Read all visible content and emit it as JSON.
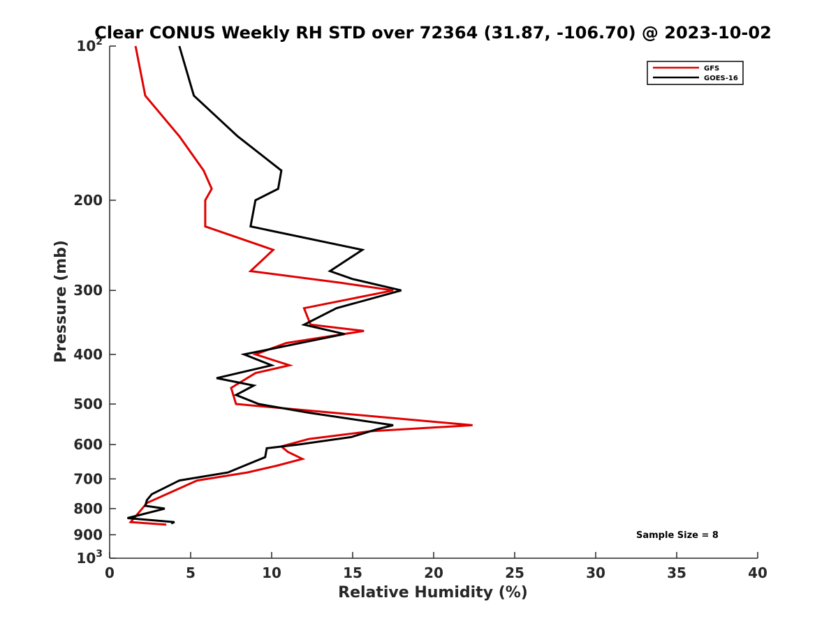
{
  "chart_data": {
    "type": "line",
    "title": "Clear CONUS Weekly RH STD over 72364 (31.87, -106.70) @ 2023-10-02",
    "xlabel": "Relative Humidity (%)",
    "ylabel": "Pressure (mb)",
    "xlim": [
      0,
      40
    ],
    "ylim": [
      100,
      1000
    ],
    "y_scale": "log",
    "y_reversed": true,
    "xticks": [
      0,
      5,
      10,
      15,
      20,
      25,
      30,
      35,
      40
    ],
    "xtick_labels": [
      "0",
      "5",
      "10",
      "15",
      "20",
      "25",
      "30",
      "35",
      "40"
    ],
    "yticks": [
      100,
      200,
      300,
      400,
      500,
      600,
      700,
      800,
      900,
      1000
    ],
    "ytick_labels": [
      {
        "base": "10",
        "exp": "2"
      },
      {
        "base": "200",
        "exp": ""
      },
      {
        "base": "300",
        "exp": ""
      },
      {
        "base": "400",
        "exp": ""
      },
      {
        "base": "500",
        "exp": ""
      },
      {
        "base": "600",
        "exp": ""
      },
      {
        "base": "700",
        "exp": ""
      },
      {
        "base": "800",
        "exp": ""
      },
      {
        "base": "900",
        "exp": ""
      },
      {
        "base": "10",
        "exp": "3"
      }
    ],
    "grid": false,
    "legend_position": "top-right",
    "series": [
      {
        "name": "GFS",
        "color": "#e00000",
        "points": [
          [
            1.6,
            100
          ],
          [
            2.2,
            125
          ],
          [
            4.3,
            150
          ],
          [
            5.8,
            175
          ],
          [
            6.3,
            190
          ],
          [
            5.9,
            200
          ],
          [
            5.9,
            225
          ],
          [
            10.1,
            250
          ],
          [
            8.7,
            275
          ],
          [
            14.3,
            290
          ],
          [
            17.5,
            300
          ],
          [
            12.0,
            325
          ],
          [
            12.4,
            350
          ],
          [
            15.7,
            360
          ],
          [
            10.9,
            380
          ],
          [
            9.0,
            400
          ],
          [
            11.1,
            420
          ],
          [
            9.0,
            435
          ],
          [
            7.5,
            465
          ],
          [
            7.8,
            500
          ],
          [
            22.4,
            550
          ],
          [
            16.1,
            565
          ],
          [
            12.3,
            585
          ],
          [
            10.6,
            605
          ],
          [
            11.0,
            620
          ],
          [
            11.9,
            640
          ],
          [
            10.3,
            660
          ],
          [
            8.5,
            680
          ],
          [
            5.4,
            705
          ],
          [
            2.3,
            780
          ],
          [
            1.3,
            850
          ],
          [
            3.5,
            860
          ]
        ]
      },
      {
        "name": "GOES-16",
        "color": "#000000",
        "points": [
          [
            4.3,
            100
          ],
          [
            5.2,
            125
          ],
          [
            7.9,
            150
          ],
          [
            10.6,
            175
          ],
          [
            10.4,
            190
          ],
          [
            9.0,
            200
          ],
          [
            8.7,
            225
          ],
          [
            15.6,
            250
          ],
          [
            13.6,
            275
          ],
          [
            15.0,
            285
          ],
          [
            18.0,
            300
          ],
          [
            14.0,
            325
          ],
          [
            12.0,
            350
          ],
          [
            14.5,
            365
          ],
          [
            10.9,
            385
          ],
          [
            8.3,
            400
          ],
          [
            10.0,
            420
          ],
          [
            6.6,
            445
          ],
          [
            8.9,
            460
          ],
          [
            7.8,
            480
          ],
          [
            9.2,
            500
          ],
          [
            12.3,
            520
          ],
          [
            17.5,
            550
          ],
          [
            16.5,
            560
          ],
          [
            14.9,
            580
          ],
          [
            11.6,
            600
          ],
          [
            9.7,
            610
          ],
          [
            9.6,
            635
          ],
          [
            8.3,
            660
          ],
          [
            7.3,
            680
          ],
          [
            4.3,
            705
          ],
          [
            2.6,
            750
          ],
          [
            2.3,
            770
          ],
          [
            2.2,
            790
          ],
          [
            3.4,
            800
          ],
          [
            1.1,
            835
          ],
          [
            4.0,
            850
          ],
          [
            3.8,
            855
          ]
        ]
      }
    ],
    "annotation": "Sample Size = 8"
  }
}
